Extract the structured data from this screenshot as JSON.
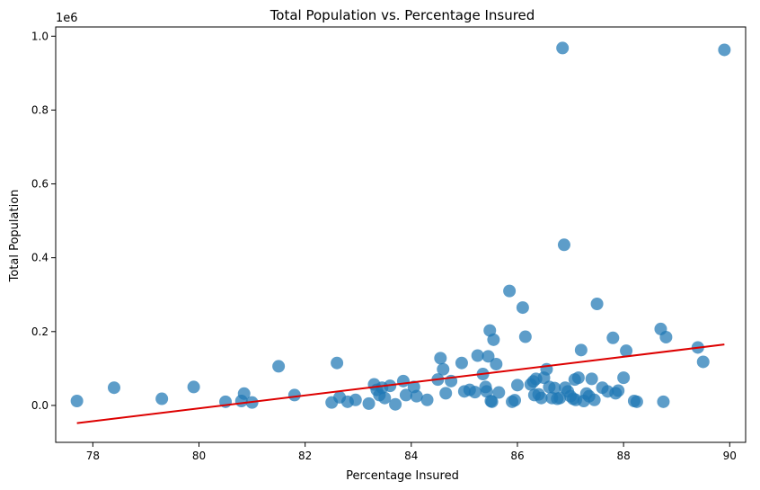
{
  "chart_data": {
    "type": "scatter",
    "title": "Total Population vs. Percentage Insured",
    "xlabel": "Percentage Insured",
    "ylabel": "Total Population",
    "offset_label": "1e6",
    "xlim": [
      77.3,
      90.3
    ],
    "ylim": [
      -100000,
      1025000
    ],
    "xticks": [
      78,
      80,
      82,
      84,
      86,
      88,
      90
    ],
    "yticks": [
      0,
      200000,
      400000,
      600000,
      800000,
      1000000
    ],
    "xtick_labels": [
      "78",
      "80",
      "82",
      "84",
      "86",
      "88",
      "90"
    ],
    "ytick_labels": [
      "0.0",
      "0.2",
      "0.4",
      "0.6",
      "0.8",
      "1.0"
    ],
    "grid": false,
    "colors": {
      "points": "#1f77b4",
      "trend": "#dd0000",
      "axes": "#000000"
    },
    "series": [
      {
        "points": [
          [
            77.7,
            12000
          ],
          [
            78.4,
            48000
          ],
          [
            79.3,
            18000
          ],
          [
            79.9,
            50000
          ],
          [
            80.5,
            10000
          ],
          [
            80.8,
            12000
          ],
          [
            80.85,
            32000
          ],
          [
            81.0,
            8000
          ],
          [
            81.5,
            106000
          ],
          [
            81.8,
            28000
          ],
          [
            82.5,
            8000
          ],
          [
            82.6,
            115000
          ],
          [
            82.65,
            22000
          ],
          [
            82.8,
            10000
          ],
          [
            82.95,
            15000
          ],
          [
            83.2,
            5000
          ],
          [
            83.3,
            57000
          ],
          [
            83.35,
            42000
          ],
          [
            83.4,
            28000
          ],
          [
            83.45,
            48000
          ],
          [
            83.5,
            20000
          ],
          [
            83.6,
            53000
          ],
          [
            83.7,
            3000
          ],
          [
            83.85,
            66000
          ],
          [
            83.9,
            28000
          ],
          [
            84.05,
            50000
          ],
          [
            84.1,
            25000
          ],
          [
            84.3,
            15000
          ],
          [
            84.5,
            70000
          ],
          [
            84.55,
            128000
          ],
          [
            84.6,
            98000
          ],
          [
            84.65,
            33000
          ],
          [
            84.75,
            66000
          ],
          [
            84.95,
            115000
          ],
          [
            85.0,
            38000
          ],
          [
            85.1,
            42000
          ],
          [
            85.2,
            36000
          ],
          [
            85.25,
            135000
          ],
          [
            85.35,
            85000
          ],
          [
            85.4,
            50000
          ],
          [
            85.42,
            38000
          ],
          [
            85.45,
            133000
          ],
          [
            85.48,
            203000
          ],
          [
            85.5,
            12000
          ],
          [
            85.52,
            10000
          ],
          [
            85.55,
            178000
          ],
          [
            85.6,
            112000
          ],
          [
            85.65,
            35000
          ],
          [
            85.85,
            310000
          ],
          [
            85.9,
            10000
          ],
          [
            85.95,
            14000
          ],
          [
            86.0,
            55000
          ],
          [
            86.1,
            265000
          ],
          [
            86.15,
            186000
          ],
          [
            86.25,
            57000
          ],
          [
            86.3,
            65000
          ],
          [
            86.32,
            28000
          ],
          [
            86.35,
            72000
          ],
          [
            86.4,
            30000
          ],
          [
            86.45,
            20000
          ],
          [
            86.5,
            75000
          ],
          [
            86.55,
            98000
          ],
          [
            86.6,
            50000
          ],
          [
            86.65,
            20000
          ],
          [
            86.7,
            47000
          ],
          [
            86.75,
            18000
          ],
          [
            86.8,
            20000
          ],
          [
            86.85,
            968000
          ],
          [
            86.88,
            435000
          ],
          [
            86.9,
            48000
          ],
          [
            86.95,
            38000
          ],
          [
            87.0,
            25000
          ],
          [
            87.05,
            18000
          ],
          [
            87.08,
            70000
          ],
          [
            87.1,
            15000
          ],
          [
            87.15,
            75000
          ],
          [
            87.2,
            150000
          ],
          [
            87.25,
            12000
          ],
          [
            87.3,
            32000
          ],
          [
            87.35,
            25000
          ],
          [
            87.4,
            72000
          ],
          [
            87.45,
            15000
          ],
          [
            87.5,
            275000
          ],
          [
            87.6,
            48000
          ],
          [
            87.7,
            38000
          ],
          [
            87.8,
            183000
          ],
          [
            87.85,
            33000
          ],
          [
            87.9,
            40000
          ],
          [
            88.0,
            75000
          ],
          [
            88.05,
            148000
          ],
          [
            88.2,
            12000
          ],
          [
            88.25,
            10000
          ],
          [
            88.7,
            207000
          ],
          [
            88.75,
            10000
          ],
          [
            88.8,
            185000
          ],
          [
            89.4,
            157000
          ],
          [
            89.5,
            118000
          ],
          [
            89.9,
            963000
          ]
        ]
      }
    ],
    "trendline": {
      "x": [
        77.7,
        89.9
      ],
      "y": [
        -48000,
        165000
      ]
    }
  }
}
